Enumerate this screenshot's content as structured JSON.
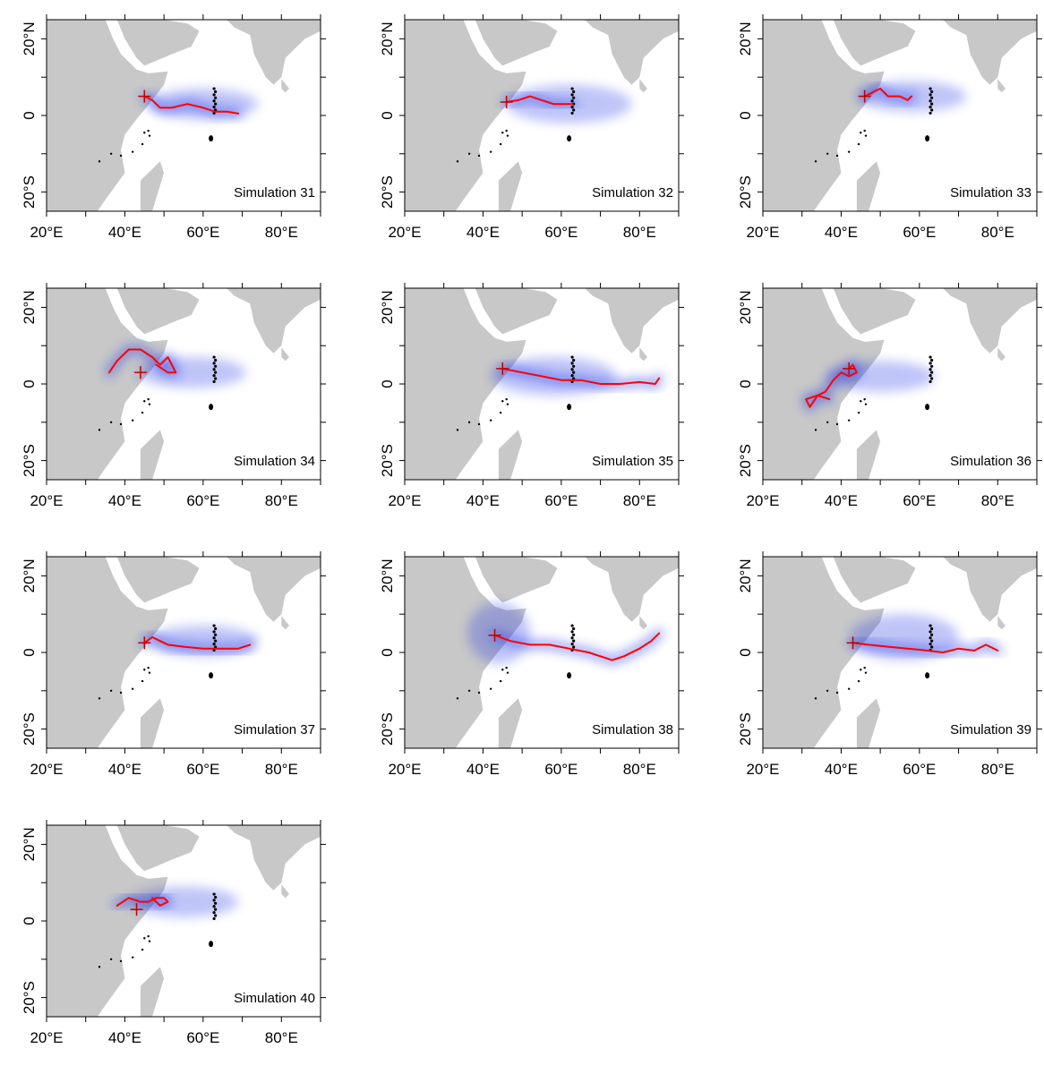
{
  "figure": {
    "x_ticks": [
      "20°E",
      "40°E",
      "60°E",
      "80°E"
    ],
    "y_ticks": [
      "20°N",
      "0",
      "20°S"
    ],
    "x_range_deg": [
      20,
      90
    ],
    "y_range_deg": [
      -25,
      25
    ],
    "colors": {
      "land": "#c8c8c8",
      "ocean": "#ffffff",
      "plume": "#1f2ee6",
      "track": "#ff0000",
      "release_marker": "#c00000",
      "islands": "#000000",
      "frame": "#000000"
    }
  },
  "panels": [
    {
      "label": "Simulation 31",
      "release": [
        45,
        5
      ],
      "track": [
        [
          45,
          5
        ],
        [
          47,
          4
        ],
        [
          49,
          2
        ],
        [
          52,
          2
        ],
        [
          56,
          3
        ],
        [
          60,
          2
        ],
        [
          63,
          1
        ],
        [
          66,
          1
        ],
        [
          69,
          0.5
        ]
      ],
      "plume_center": [
        60,
        3
      ],
      "plume_spread": [
        14,
        4
      ]
    },
    {
      "label": "Simulation 32",
      "release": [
        46,
        3.5
      ],
      "track": [
        [
          46,
          3.5
        ],
        [
          49,
          4
        ],
        [
          52,
          5
        ],
        [
          55,
          4
        ],
        [
          58,
          3
        ],
        [
          61,
          3
        ],
        [
          63,
          3
        ]
      ],
      "plume_center": [
        62,
        3
      ],
      "plume_spread": [
        16,
        5
      ]
    },
    {
      "label": "Simulation 33",
      "release": [
        46,
        5
      ],
      "track": [
        [
          46,
          5
        ],
        [
          48,
          6
        ],
        [
          50,
          7
        ],
        [
          52,
          5
        ],
        [
          55,
          5
        ],
        [
          57,
          4
        ],
        [
          58,
          5
        ]
      ],
      "plume_center": [
        58,
        5
      ],
      "plume_spread": [
        14,
        4
      ]
    },
    {
      "label": "Simulation 34",
      "release": [
        44,
        3
      ],
      "track": [
        [
          36,
          3
        ],
        [
          38,
          6
        ],
        [
          41,
          9
        ],
        [
          44,
          9
        ],
        [
          47,
          7
        ],
        [
          49,
          5
        ],
        [
          51,
          7
        ],
        [
          53,
          3
        ],
        [
          51,
          3
        ],
        [
          48,
          5
        ]
      ],
      "plume_center": [
        57,
        3
      ],
      "plume_spread": [
        14,
        4
      ]
    },
    {
      "label": "Simulation 35",
      "release": [
        45,
        4
      ],
      "track": [
        [
          45,
          4
        ],
        [
          50,
          3
        ],
        [
          55,
          2
        ],
        [
          60,
          1
        ],
        [
          65,
          1
        ],
        [
          70,
          0
        ],
        [
          75,
          0
        ],
        [
          80,
          0.5
        ],
        [
          84,
          0
        ],
        [
          85,
          1.5
        ]
      ],
      "plume_center": [
        58,
        2
      ],
      "plume_spread": [
        16,
        5
      ]
    },
    {
      "label": "Simulation 36",
      "release": [
        42,
        4
      ],
      "track": [
        [
          42,
          4
        ],
        [
          43,
          5
        ],
        [
          44,
          3
        ],
        [
          42,
          2
        ],
        [
          40,
          3
        ],
        [
          38,
          1
        ],
        [
          36,
          -2
        ],
        [
          34,
          -3
        ],
        [
          32,
          -6
        ],
        [
          31,
          -4
        ],
        [
          34,
          -3
        ],
        [
          37,
          -4
        ]
      ],
      "plume_center": [
        50,
        2
      ],
      "plume_spread": [
        14,
        4
      ]
    },
    {
      "label": "Simulation 37",
      "release": [
        45,
        2.5
      ],
      "track": [
        [
          45,
          2.5
        ],
        [
          47,
          4
        ],
        [
          49,
          3
        ],
        [
          51,
          2
        ],
        [
          55,
          1.5
        ],
        [
          60,
          1
        ],
        [
          65,
          1
        ],
        [
          69,
          1
        ],
        [
          72,
          2
        ]
      ],
      "plume_center": [
        60,
        3
      ],
      "plume_spread": [
        14,
        4
      ]
    },
    {
      "label": "Simulation 38",
      "release": [
        43,
        4.5
      ],
      "track": [
        [
          43,
          4.5
        ],
        [
          47,
          3
        ],
        [
          52,
          2
        ],
        [
          57,
          2
        ],
        [
          62,
          1
        ],
        [
          67,
          0
        ],
        [
          70,
          -1
        ],
        [
          73,
          -2
        ],
        [
          76,
          -1
        ],
        [
          80,
          1
        ],
        [
          83,
          3
        ],
        [
          85,
          5
        ]
      ],
      "plume_center": [
        44,
        5
      ],
      "plume_spread": [
        8,
        8
      ]
    },
    {
      "label": "Simulation 39",
      "release": [
        43,
        2.5
      ],
      "track": [
        [
          43,
          2.5
        ],
        [
          47,
          2
        ],
        [
          52,
          1.5
        ],
        [
          57,
          1
        ],
        [
          62,
          0.5
        ],
        [
          66,
          0
        ],
        [
          70,
          1
        ],
        [
          74,
          0.5
        ],
        [
          77,
          2
        ],
        [
          80,
          0.5
        ]
      ],
      "plume_center": [
        56,
        4
      ],
      "plume_spread": [
        14,
        6
      ]
    },
    {
      "label": "Simulation 40",
      "release": [
        43,
        3
      ],
      "track": [
        [
          38,
          4
        ],
        [
          41,
          6
        ],
        [
          44,
          5
        ],
        [
          46,
          5
        ],
        [
          48,
          6
        ],
        [
          50,
          6
        ],
        [
          51,
          5
        ],
        [
          49,
          4
        ],
        [
          47,
          6
        ]
      ],
      "plume_center": [
        55,
        5
      ],
      "plume_spread": [
        14,
        4
      ]
    }
  ]
}
